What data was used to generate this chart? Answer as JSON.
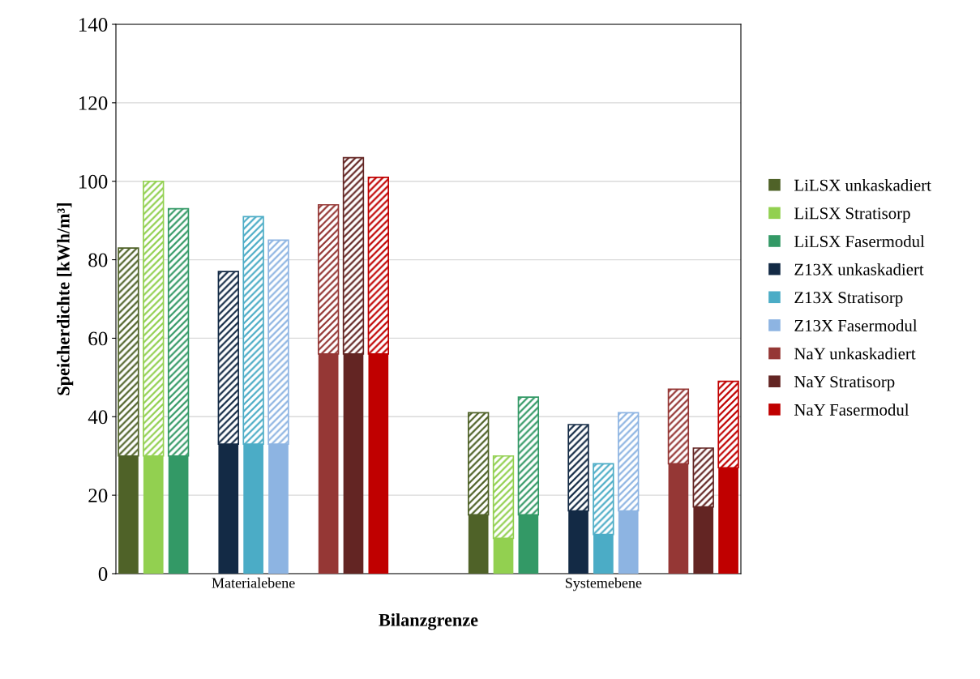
{
  "chart_data": {
    "type": "bar",
    "stacked": true,
    "xlabel": "Bilanzgrenze",
    "ylabel": "Speicherdichte [kWh/m³]",
    "categories": [
      null,
      null,
      null,
      null,
      null,
      "Materialebene",
      null,
      null,
      null,
      null,
      null,
      null,
      null,
      null,
      null,
      null,
      null,
      null,
      null,
      "Systemebene",
      null,
      null,
      null,
      null,
      null
    ],
    "ylim": [
      0,
      140
    ],
    "yticks": [
      0,
      20,
      40,
      60,
      80,
      100,
      120,
      140
    ],
    "grid": "y",
    "legend": "right",
    "series": [
      {
        "name": "LiLSX unkaskadiert",
        "color": "#4f6228",
        "values": [
          30,
          null,
          null,
          null,
          null,
          null,
          null,
          null,
          null,
          null,
          null,
          null,
          null,
          null,
          15,
          null,
          null,
          null,
          null,
          null,
          null,
          null,
          null,
          null,
          null
        ]
      },
      {
        "name": "LiLSX Stratisorp",
        "color": "#92d050",
        "values": [
          null,
          30,
          null,
          null,
          null,
          null,
          null,
          null,
          null,
          null,
          null,
          null,
          null,
          null,
          null,
          9,
          null,
          null,
          null,
          null,
          null,
          null,
          null,
          null,
          null
        ]
      },
      {
        "name": "LiLSX Fasermodul",
        "color": "#339966",
        "values": [
          null,
          null,
          30,
          null,
          null,
          null,
          null,
          null,
          null,
          null,
          null,
          null,
          null,
          null,
          null,
          null,
          15,
          null,
          null,
          null,
          null,
          null,
          null,
          null,
          null
        ]
      },
      {
        "name": "Z13X unkaskadiert",
        "color": "#132a45",
        "values": [
          null,
          null,
          null,
          null,
          33,
          null,
          null,
          null,
          null,
          null,
          null,
          null,
          null,
          null,
          null,
          null,
          null,
          null,
          16,
          null,
          null,
          null,
          null,
          null,
          null
        ]
      },
      {
        "name": "Z13X Stratisorp",
        "color": "#4bacc6",
        "values": [
          null,
          null,
          null,
          null,
          null,
          33,
          null,
          null,
          null,
          null,
          null,
          null,
          null,
          null,
          null,
          null,
          null,
          null,
          null,
          10,
          null,
          null,
          null,
          null,
          null
        ]
      },
      {
        "name": "Z13X Fasermodul",
        "color": "#8db4e2",
        "values": [
          null,
          null,
          null,
          null,
          null,
          null,
          33,
          null,
          null,
          null,
          null,
          null,
          null,
          null,
          null,
          null,
          null,
          null,
          null,
          null,
          16,
          null,
          null,
          null,
          null
        ]
      },
      {
        "name": "NaY unkaskadiert",
        "color": "#953735",
        "values": [
          null,
          null,
          null,
          null,
          null,
          null,
          null,
          null,
          56,
          null,
          null,
          null,
          null,
          null,
          null,
          null,
          null,
          null,
          null,
          null,
          null,
          null,
          28,
          null,
          null
        ]
      },
      {
        "name": "NaY Stratisorp",
        "color": "#632523",
        "values": [
          null,
          null,
          null,
          null,
          null,
          null,
          null,
          null,
          null,
          56,
          null,
          null,
          null,
          null,
          null,
          null,
          null,
          null,
          null,
          null,
          null,
          null,
          null,
          17,
          null
        ]
      },
      {
        "name": "NaY Fasermodul",
        "color": "#c00000",
        "values": [
          null,
          null,
          null,
          null,
          null,
          null,
          null,
          null,
          null,
          null,
          56,
          null,
          null,
          null,
          null,
          null,
          null,
          null,
          null,
          null,
          null,
          null,
          null,
          null,
          27
        ]
      },
      {
        "color": "#4f6228",
        "values": [
          53,
          null,
          null,
          null,
          null,
          null,
          null,
          null,
          null,
          null,
          null,
          null,
          null,
          null,
          26,
          null,
          null,
          null,
          null,
          null,
          null,
          null,
          null,
          null,
          null
        ]
      },
      {
        "color": "#92d050",
        "values": [
          null,
          70,
          null,
          null,
          null,
          null,
          null,
          null,
          null,
          null,
          null,
          null,
          null,
          null,
          null,
          21,
          null,
          null,
          null,
          null,
          null,
          null,
          null,
          null,
          null
        ]
      },
      {
        "color": "#339966",
        "values": [
          null,
          null,
          63,
          null,
          null,
          null,
          null,
          null,
          null,
          null,
          null,
          null,
          null,
          null,
          null,
          null,
          30,
          null,
          null,
          null,
          null,
          null,
          null,
          null,
          null
        ]
      },
      {
        "color": "#132a45",
        "values": [
          null,
          null,
          null,
          null,
          44,
          null,
          null,
          null,
          null,
          null,
          null,
          null,
          null,
          null,
          null,
          null,
          null,
          null,
          22,
          null,
          null,
          null,
          null,
          null,
          null
        ]
      },
      {
        "color": "#4bacc6",
        "values": [
          null,
          null,
          null,
          null,
          null,
          58,
          null,
          null,
          null,
          null,
          null,
          null,
          null,
          null,
          null,
          null,
          null,
          null,
          null,
          18,
          null,
          null,
          null,
          null,
          null
        ]
      },
      {
        "color": "#8db4e2",
        "values": [
          null,
          null,
          null,
          null,
          null,
          null,
          52,
          null,
          null,
          null,
          null,
          null,
          null,
          null,
          null,
          null,
          null,
          null,
          null,
          null,
          25,
          null,
          null,
          null,
          null
        ]
      },
      {
        "color": "#953735",
        "values": [
          null,
          null,
          null,
          null,
          null,
          null,
          null,
          null,
          38,
          null,
          null,
          null,
          null,
          null,
          null,
          null,
          null,
          null,
          null,
          null,
          null,
          null,
          19,
          null,
          null
        ]
      },
      {
        "color": "#632523",
        "values": [
          null,
          null,
          null,
          null,
          null,
          null,
          null,
          null,
          null,
          50,
          null,
          null,
          null,
          null,
          null,
          null,
          null,
          null,
          null,
          null,
          null,
          null,
          null,
          15,
          null
        ]
      },
      {
        "color": "#c00000",
        "values": [
          null,
          null,
          null,
          null,
          null,
          null,
          null,
          null,
          null,
          null,
          45,
          null,
          null,
          null,
          null,
          null,
          null,
          null,
          null,
          null,
          null,
          null,
          null,
          null,
          22
        ]
      }
    ]
  }
}
